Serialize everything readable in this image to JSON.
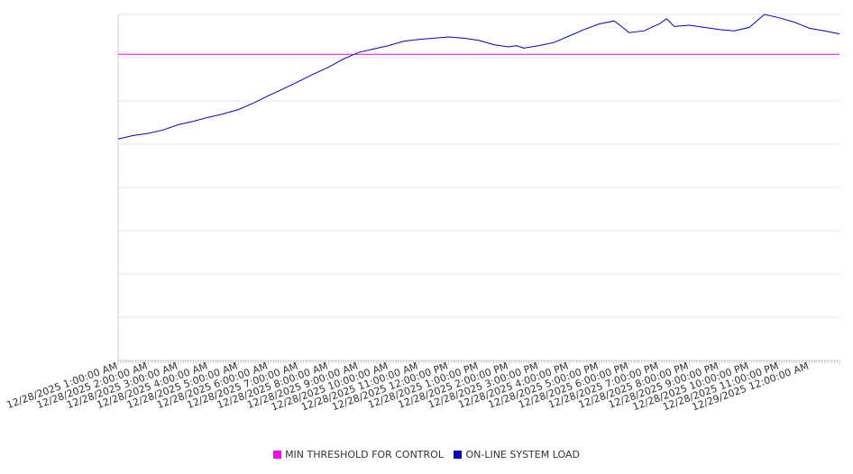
{
  "chart_data": {
    "type": "line",
    "title": "",
    "xlabel": "",
    "ylabel": "",
    "x_tick_labels": [
      "12/28/2025 1:00:00 AM",
      "12/28/2025 2:00:00 AM",
      "12/28/2025 3:00:00 AM",
      "12/28/2025 4:00:00 AM",
      "12/28/2025 5:00:00 AM",
      "12/28/2025 6:00:00 AM",
      "12/28/2025 7:00:00 AM",
      "12/28/2025 8:00:00 AM",
      "12/28/2025 9:00:00 AM",
      "12/28/2025 10:00:00 AM",
      "12/28/2025 11:00:00 AM",
      "12/28/2025 12:00:00 PM",
      "12/28/2025 1:00:00 PM",
      "12/28/2025 2:00:00 PM",
      "12/28/2025 3:00:00 PM",
      "12/28/2025 4:00:00 PM",
      "12/28/2025 5:00:00 PM",
      "12/28/2025 6:00:00 PM",
      "12/28/2025 7:00:00 PM",
      "12/28/2025 8:00:00 PM",
      "12/28/2025 9:00:00 PM",
      "12/28/2025 10:00:00 PM",
      "12/28/2025 11:00:00 PM",
      "12/29/2025 12:00:00 AM"
    ],
    "y_tick_labels": [],
    "ylim": [
      0,
      8
    ],
    "grid": true,
    "legend_position": "bottom",
    "series": [
      {
        "name": "MIN THRESHOLD FOR CONTROL",
        "color": "#ff00ff",
        "x_hours": [
          0,
          24
        ],
        "values": [
          7.08,
          7.08
        ]
      },
      {
        "name": "ON-LINE SYSTEM LOAD",
        "color": "#0000cc",
        "x_hours": [
          0,
          0.5,
          1,
          1.5,
          2,
          2.5,
          3,
          3.5,
          4,
          4.5,
          5,
          5.5,
          6,
          6.5,
          7,
          7.5,
          8,
          8.5,
          9,
          9.5,
          10,
          10.5,
          11,
          11.5,
          12,
          12.5,
          13,
          13.25,
          13.5,
          14,
          14.5,
          15,
          15.5,
          16,
          16.5,
          16.75,
          17,
          17.5,
          18,
          18.25,
          18.5,
          19,
          19.5,
          20,
          20.5,
          21,
          21.5,
          22,
          22.5,
          23,
          23.5,
          24
        ],
        "values": [
          5.12,
          5.2,
          5.25,
          5.33,
          5.45,
          5.53,
          5.62,
          5.7,
          5.8,
          5.95,
          6.12,
          6.28,
          6.45,
          6.62,
          6.78,
          6.97,
          7.12,
          7.2,
          7.28,
          7.38,
          7.42,
          7.45,
          7.48,
          7.45,
          7.4,
          7.3,
          7.25,
          7.28,
          7.22,
          7.28,
          7.35,
          7.5,
          7.65,
          7.78,
          7.85,
          7.72,
          7.58,
          7.62,
          7.78,
          7.9,
          7.72,
          7.75,
          7.7,
          7.65,
          7.62,
          7.7,
          8.0,
          7.92,
          7.82,
          7.68,
          7.62,
          7.55
        ]
      }
    ]
  }
}
